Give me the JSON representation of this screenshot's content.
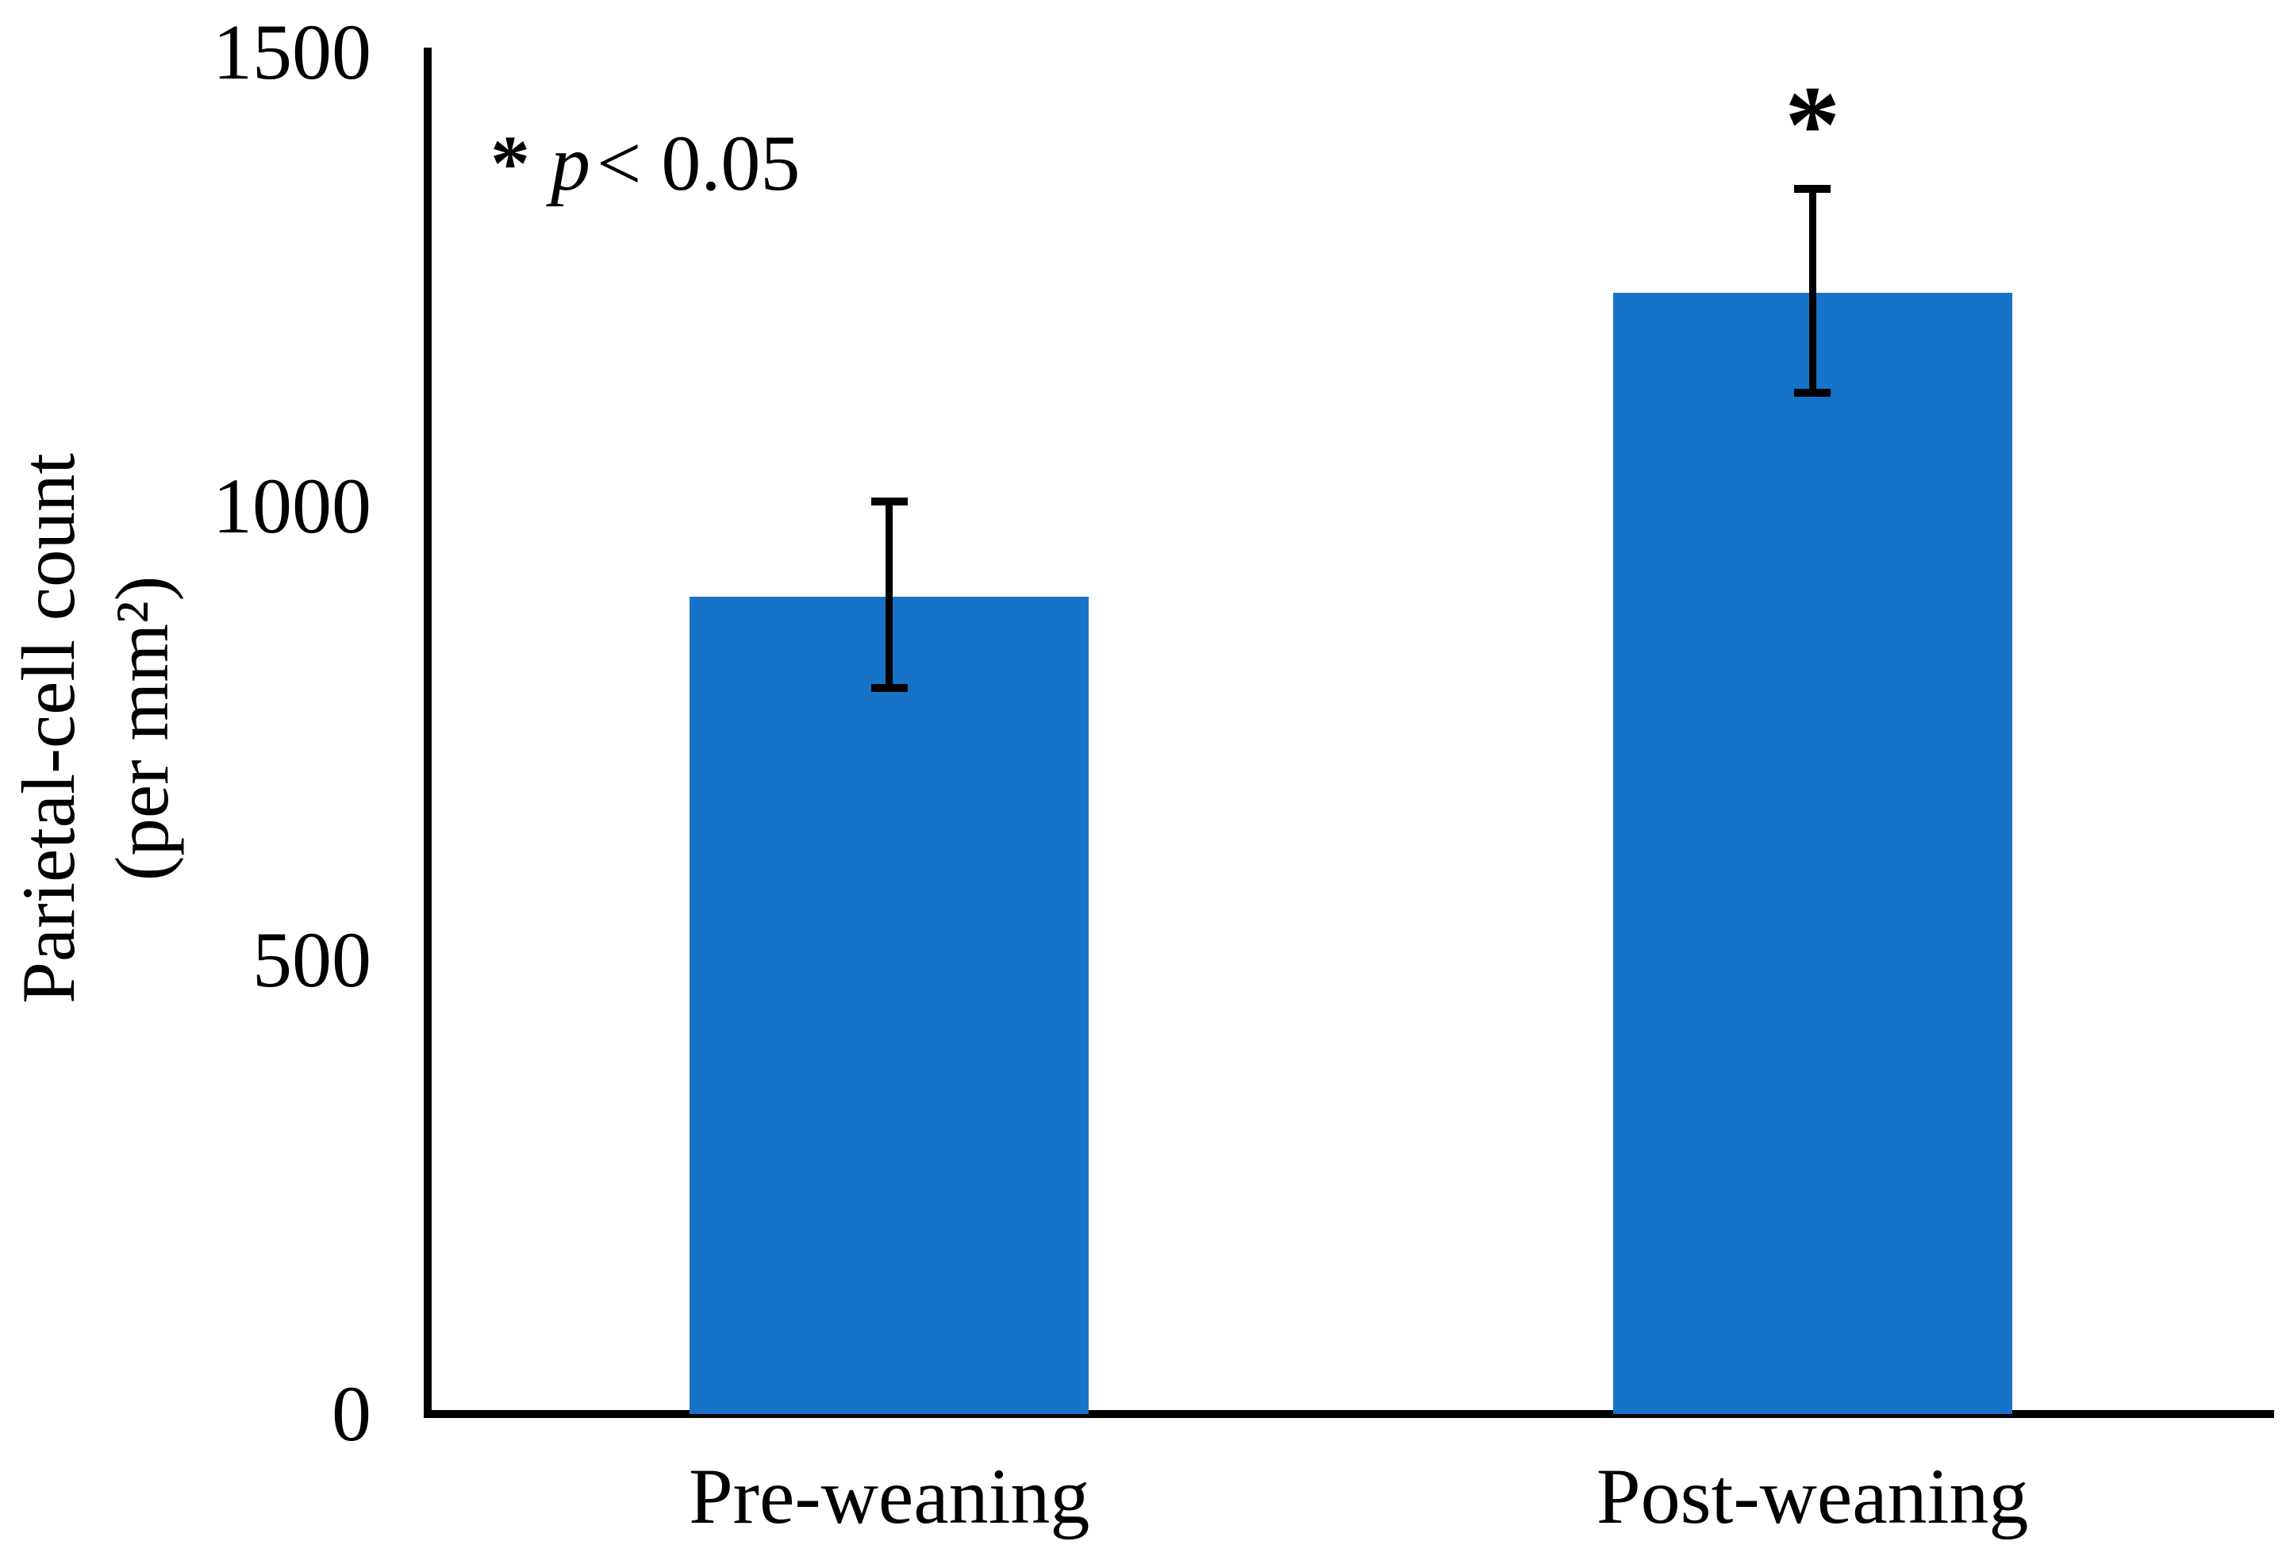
{
  "figure": {
    "background": "#ffffff"
  },
  "chart_data": {
    "type": "bar",
    "title": "",
    "categories": [
      "Pre-weaning",
      "Post-weaning"
    ],
    "values": [
      900,
      1235
    ],
    "error_bars": [
      {
        "low": 800,
        "high": 1005
      },
      {
        "low": 1125,
        "high": 1350
      }
    ],
    "ylabel_line1": "Parietal-cell count",
    "ylabel_line2": "(per mm²)",
    "xlabel": "",
    "ylim": [
      0,
      1500
    ],
    "yticks": [
      0,
      500,
      1000,
      1500
    ],
    "grid": false,
    "legend": false,
    "bar_color": "#1673C8",
    "axis_color": "#000000",
    "annotation": {
      "star": "*",
      "p_var": "p",
      "rest": "< 0.05"
    },
    "significance": {
      "symbol": "*",
      "category_index": 1
    }
  }
}
